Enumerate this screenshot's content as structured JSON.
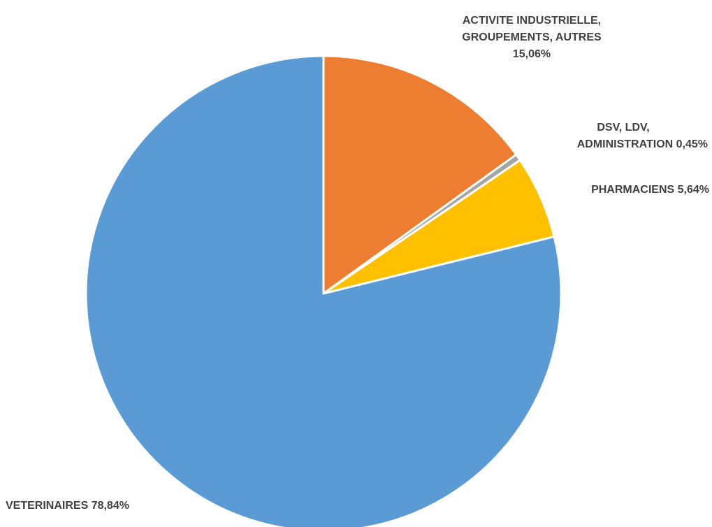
{
  "chart_data": {
    "type": "pie",
    "slices": [
      {
        "label": "ACTIVITE INDUSTRIELLE, GROUPEMENTS, AUTRES",
        "value": 15.06,
        "value_text": "15,06%",
        "color": "#ED7D31",
        "label_lines": [
          "ACTIVITE INDUSTRIELLE,",
          "GROUPEMENTS, AUTRES",
          "15,06%"
        ]
      },
      {
        "label": "DSV, LDV, ADMINISTRATION",
        "value": 0.45,
        "value_text": "0,45%",
        "color": "#A5A5A5",
        "label_lines": [
          "DSV, LDV,",
          "ADMINISTRATION 0,45%"
        ]
      },
      {
        "label": "PHARMACIENS",
        "value": 5.64,
        "value_text": "5,64%",
        "color": "#FFC000",
        "label_lines": [
          "PHARMACIENS 5,64%"
        ]
      },
      {
        "label": "VETERINAIRES",
        "value": 78.84,
        "value_text": "78,84%",
        "color": "#5B9BD5",
        "label_lines": [
          "VETERINAIRES 78,84%"
        ]
      }
    ],
    "start_angle": "12 o'clock",
    "direction": "clockwise",
    "legend": "none"
  }
}
